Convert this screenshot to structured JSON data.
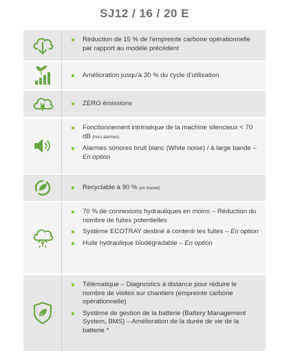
{
  "title": "SJ12 / 16 / 20 E",
  "rows": [
    {
      "icon": "cloud-arrow-down-icon",
      "bullets": [
        {
          "text": "Réduction de 15 % de l'empreinte carbone opérationnelle par rapport au modèle précédent"
        }
      ]
    },
    {
      "icon": "plant-growth-chart-icon",
      "bullets": [
        {
          "text": "Amélioration jusqu'à 30 % du cycle d'utilisation"
        }
      ]
    },
    {
      "icon": "cloud-plug-icon",
      "bullets": [
        {
          "text": "ZERO émissions"
        }
      ]
    },
    {
      "icon": "speaker-icon",
      "bullets": [
        {
          "text": "Fonctionnement intrinsèque de la machine silencieux < 70 dB",
          "small": "(hors alarmes)"
        },
        {
          "text": "Alarmes sonores bruit blanc (White noise) / à large bande – ",
          "em": "En option"
        }
      ]
    },
    {
      "icon": "recycle-leaf-icon",
      "bullets": [
        {
          "text": "Recyclable à 90 %",
          "small": "(en masse)"
        }
      ]
    },
    {
      "icon": "cloud-hydraulic-icon",
      "bullets": [
        {
          "text": "70 % de connexions hydrauliques en moins – Réduction du nombre de fuites potentielles"
        },
        {
          "text": "Système ECOTRAY destiné à contenir les fuites – ",
          "em": "En option"
        },
        {
          "text": "Huile hydraulique biodégradable – ",
          "em": "En option"
        }
      ]
    },
    {
      "icon": "shield-leaf-icon",
      "bullets": [
        {
          "text": "Télématique – Diagnostics à distance pour réduire le nombre de visites sur chantiers (empreinte carbone opérationnelle)"
        },
        {
          "text": "Système de gestion de la batterie (Battery Management System, BMS) – Amélioration de la durée de vie de la batterie *"
        }
      ]
    }
  ],
  "colors": {
    "accent": "#8dc63f",
    "icon": "#6aa744",
    "row_grey": "#e6e6e7",
    "row_light": "#f4f4f4"
  }
}
